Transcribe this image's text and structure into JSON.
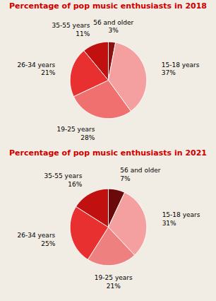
{
  "chart_data": [
    {
      "type": "pie",
      "title": "Percentage of pop music enthusiasts in 2018",
      "categories": [
        "56 and older",
        "15-18 years",
        "19-25 years",
        "26-34 years",
        "35-55 years"
      ],
      "values": [
        3,
        37,
        28,
        21,
        11
      ],
      "value_labels": [
        "3%",
        "37%",
        "28%",
        "21%",
        "11%"
      ],
      "colors": [
        "#8B1010",
        "#F4A0A0",
        "#F07070",
        "#E83030",
        "#C01010"
      ]
    },
    {
      "type": "pie",
      "title": "Percentage of pop music enthusiasts in 2021",
      "categories": [
        "56 and older",
        "15-18 years",
        "19-25 years",
        "26-34 years",
        "35-55 years"
      ],
      "values": [
        7,
        31,
        21,
        25,
        16
      ],
      "value_labels": [
        "7%",
        "31%",
        "21%",
        "25%",
        "16%"
      ],
      "colors": [
        "#6B0A0A",
        "#F4A0A0",
        "#EE8080",
        "#E83030",
        "#C01010"
      ]
    }
  ]
}
